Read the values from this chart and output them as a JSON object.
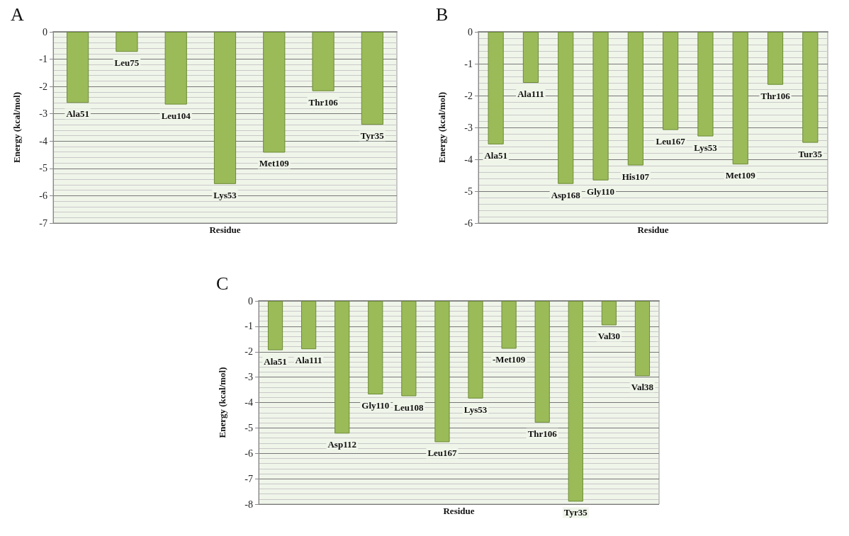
{
  "chart_data": [
    {
      "type": "bar",
      "title": "A",
      "xlabel": "Residue",
      "ylabel": "Energy (kcal/mol)",
      "categories": [
        "Ala51",
        "Leu75",
        "Leu104",
        "Lys53",
        "Met109",
        "Thr106",
        "Tyr35"
      ],
      "values": [
        -2.6,
        -0.73,
        -2.66,
        -5.57,
        -4.42,
        -2.17,
        -3.4
      ],
      "color": "#9bbb59",
      "ylim": [
        -7,
        0
      ],
      "yticks": [
        -7,
        -6,
        -5,
        -4,
        -3,
        -2,
        -1,
        0
      ],
      "grid": "y",
      "tick_labels": "y"
    },
    {
      "type": "bar",
      "title": "B",
      "xlabel": "Residue",
      "ylabel": "Energy (kcal/mol)",
      "categories": [
        "Ala51",
        "Ala111",
        "Asp168",
        "Gly110",
        "His107",
        "Leu167",
        "Lys53",
        "Met109",
        "Thr106",
        "Tur35"
      ],
      "values": [
        -3.53,
        -1.6,
        -4.77,
        -4.66,
        -4.19,
        -3.08,
        -3.28,
        -4.16,
        -1.66,
        -3.48
      ],
      "color": "#9bbb59",
      "ylim": [
        -6,
        0
      ],
      "yticks": [
        -6,
        -5,
        -4,
        -3,
        -2,
        -1,
        0
      ],
      "grid": "y",
      "tick_labels": "y"
    },
    {
      "type": "bar",
      "title": "C",
      "xlabel": "Residue",
      "ylabel": "Energy (kcal/mol)",
      "categories": [
        "Ala51",
        "Ala111",
        "Asp112",
        "Gly110",
        "Leu108",
        "Leu167",
        "Lys53",
        "-Met109",
        "Thr106",
        "Tyr35",
        "Val30",
        "Val38"
      ],
      "values": [
        -1.94,
        -1.9,
        -5.22,
        -3.68,
        -3.75,
        -5.56,
        -3.84,
        -1.88,
        -4.79,
        -7.9,
        -0.96,
        -2.96
      ],
      "color": "#9bbb59",
      "ylim": [
        -8,
        0
      ],
      "yticks": [
        -8,
        -7,
        -6,
        -5,
        -4,
        -3,
        -2,
        -1,
        0
      ],
      "grid": "y",
      "tick_labels": "y"
    }
  ]
}
